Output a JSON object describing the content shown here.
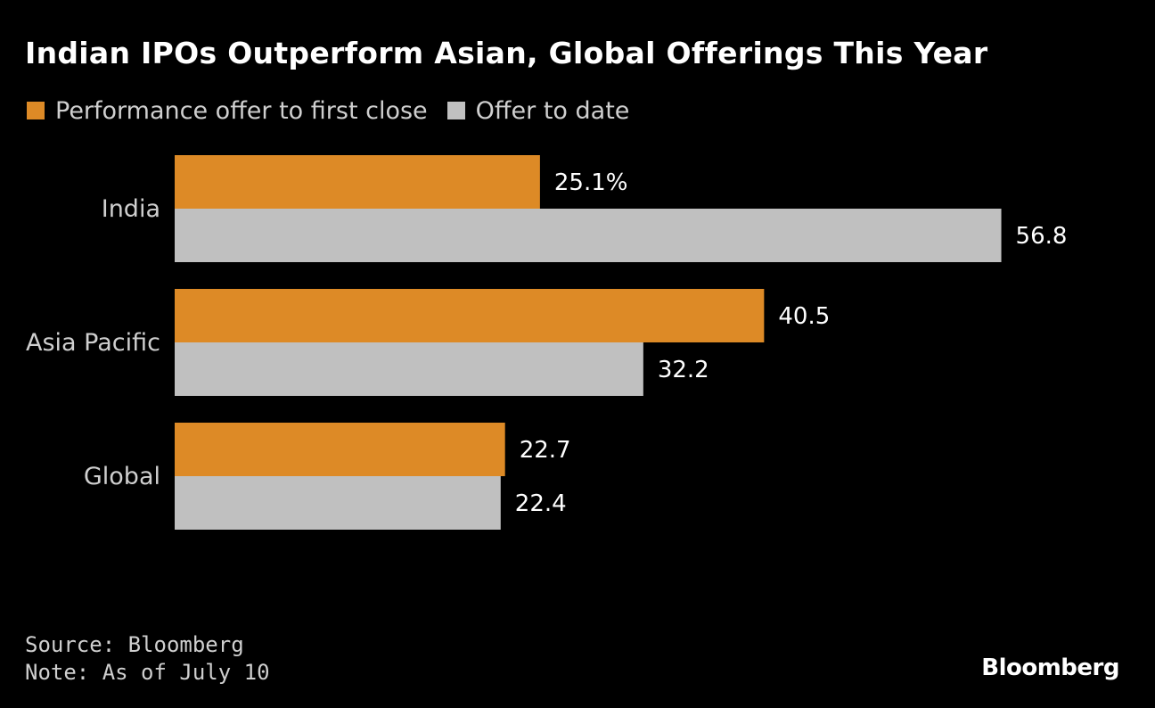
{
  "chart_data": {
    "type": "bar",
    "orientation": "horizontal",
    "title": "Indian IPOs Outperform Asian, Global Offerings This Year",
    "categories": [
      "India",
      "Asia Pacific",
      "Global"
    ],
    "series": [
      {
        "name": "Performance offer to first close",
        "color": "#dd8a26",
        "values": [
          25.1,
          40.5,
          22.7
        ],
        "labels": [
          "25.1%",
          "40.5",
          "22.7"
        ]
      },
      {
        "name": "Offer to date",
        "color": "#c0c0c0",
        "values": [
          56.8,
          32.2,
          22.4
        ],
        "labels": [
          "56.8",
          "32.2",
          "22.4"
        ]
      }
    ],
    "xlim": [
      0,
      60
    ],
    "grid": false,
    "legend_position": "top-left"
  },
  "footer": {
    "source": "Source: Bloomberg",
    "note": "Note: As of July 10",
    "brand": "Bloomberg"
  }
}
